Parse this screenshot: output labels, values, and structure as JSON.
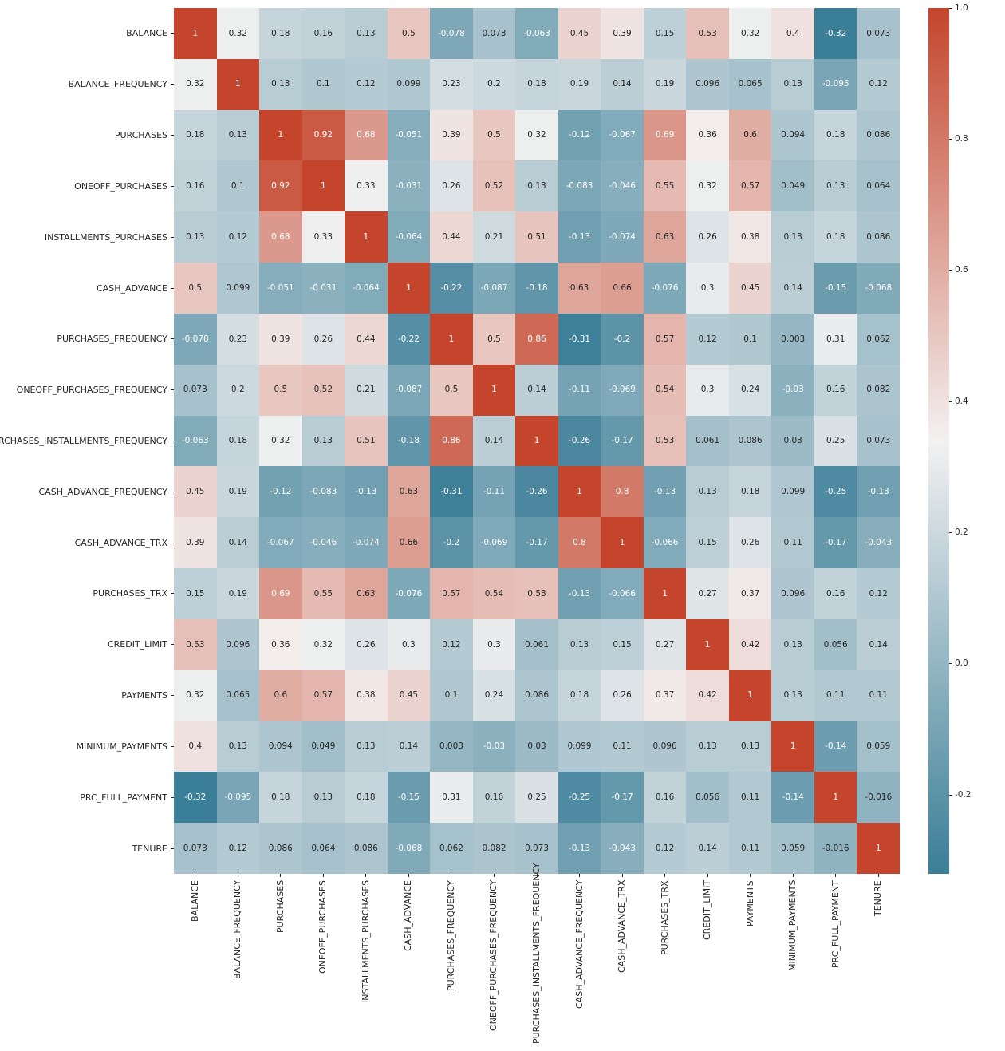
{
  "chart_data": {
    "type": "heatmap",
    "title": "",
    "labels": [
      "BALANCE",
      "BALANCE_FREQUENCY",
      "PURCHASES",
      "ONEOFF_PURCHASES",
      "INSTALLMENTS_PURCHASES",
      "CASH_ADVANCE",
      "PURCHASES_FREQUENCY",
      "ONEOFF_PURCHASES_FREQUENCY",
      "PURCHASES_INSTALLMENTS_FREQUENCY",
      "CASH_ADVANCE_FREQUENCY",
      "CASH_ADVANCE_TRX",
      "PURCHASES_TRX",
      "CREDIT_LIMIT",
      "PAYMENTS",
      "MINIMUM_PAYMENTS",
      "PRC_FULL_PAYMENT",
      "TENURE"
    ],
    "matrix": [
      [
        "1",
        "0.32",
        "0.18",
        "0.16",
        "0.13",
        "0.5",
        "-0.078",
        "0.073",
        "-0.063",
        "0.45",
        "0.39",
        "0.15",
        "0.53",
        "0.32",
        "0.4",
        "-0.32",
        "0.073"
      ],
      [
        "0.32",
        "1",
        "0.13",
        "0.1",
        "0.12",
        "0.099",
        "0.23",
        "0.2",
        "0.18",
        "0.19",
        "0.14",
        "0.19",
        "0.096",
        "0.065",
        "0.13",
        "-0.095",
        "0.12"
      ],
      [
        "0.18",
        "0.13",
        "1",
        "0.92",
        "0.68",
        "-0.051",
        "0.39",
        "0.5",
        "0.32",
        "-0.12",
        "-0.067",
        "0.69",
        "0.36",
        "0.6",
        "0.094",
        "0.18",
        "0.086"
      ],
      [
        "0.16",
        "0.1",
        "0.92",
        "1",
        "0.33",
        "-0.031",
        "0.26",
        "0.52",
        "0.13",
        "-0.083",
        "-0.046",
        "0.55",
        "0.32",
        "0.57",
        "0.049",
        "0.13",
        "0.064"
      ],
      [
        "0.13",
        "0.12",
        "0.68",
        "0.33",
        "1",
        "-0.064",
        "0.44",
        "0.21",
        "0.51",
        "-0.13",
        "-0.074",
        "0.63",
        "0.26",
        "0.38",
        "0.13",
        "0.18",
        "0.086"
      ],
      [
        "0.5",
        "0.099",
        "-0.051",
        "-0.031",
        "-0.064",
        "1",
        "-0.22",
        "-0.087",
        "-0.18",
        "0.63",
        "0.66",
        "-0.076",
        "0.3",
        "0.45",
        "0.14",
        "-0.15",
        "-0.068"
      ],
      [
        "-0.078",
        "0.23",
        "0.39",
        "0.26",
        "0.44",
        "-0.22",
        "1",
        "0.5",
        "0.86",
        "-0.31",
        "-0.2",
        "0.57",
        "0.12",
        "0.1",
        "0.003",
        "0.31",
        "0.062"
      ],
      [
        "0.073",
        "0.2",
        "0.5",
        "0.52",
        "0.21",
        "-0.087",
        "0.5",
        "1",
        "0.14",
        "-0.11",
        "-0.069",
        "0.54",
        "0.3",
        "0.24",
        "-0.03",
        "0.16",
        "0.082"
      ],
      [
        "-0.063",
        "0.18",
        "0.32",
        "0.13",
        "0.51",
        "-0.18",
        "0.86",
        "0.14",
        "1",
        "-0.26",
        "-0.17",
        "0.53",
        "0.061",
        "0.086",
        "0.03",
        "0.25",
        "0.073"
      ],
      [
        "0.45",
        "0.19",
        "-0.12",
        "-0.083",
        "-0.13",
        "0.63",
        "-0.31",
        "-0.11",
        "-0.26",
        "1",
        "0.8",
        "-0.13",
        "0.13",
        "0.18",
        "0.099",
        "-0.25",
        "-0.13"
      ],
      [
        "0.39",
        "0.14",
        "-0.067",
        "-0.046",
        "-0.074",
        "0.66",
        "-0.2",
        "-0.069",
        "-0.17",
        "0.8",
        "1",
        "-0.066",
        "0.15",
        "0.26",
        "0.11",
        "-0.17",
        "-0.043"
      ],
      [
        "0.15",
        "0.19",
        "0.69",
        "0.55",
        "0.63",
        "-0.076",
        "0.57",
        "0.54",
        "0.53",
        "-0.13",
        "-0.066",
        "1",
        "0.27",
        "0.37",
        "0.096",
        "0.16",
        "0.12"
      ],
      [
        "0.53",
        "0.096",
        "0.36",
        "0.32",
        "0.26",
        "0.3",
        "0.12",
        "0.3",
        "0.061",
        "0.13",
        "0.15",
        "0.27",
        "1",
        "0.42",
        "0.13",
        "0.056",
        "0.14"
      ],
      [
        "0.32",
        "0.065",
        "0.6",
        "0.57",
        "0.38",
        "0.45",
        "0.1",
        "0.24",
        "0.086",
        "0.18",
        "0.26",
        "0.37",
        "0.42",
        "1",
        "0.13",
        "0.11",
        "0.11"
      ],
      [
        "0.4",
        "0.13",
        "0.094",
        "0.049",
        "0.13",
        "0.14",
        "0.003",
        "-0.03",
        "0.03",
        "0.099",
        "0.11",
        "0.096",
        "0.13",
        "0.13",
        "1",
        "-0.14",
        "0.059"
      ],
      [
        "-0.32",
        "-0.095",
        "0.18",
        "0.13",
        "0.18",
        "-0.15",
        "0.31",
        "0.16",
        "0.25",
        "-0.25",
        "-0.17",
        "0.16",
        "0.056",
        "0.11",
        "-0.14",
        "1",
        "-0.016"
      ],
      [
        "0.073",
        "0.12",
        "0.086",
        "0.064",
        "0.086",
        "-0.068",
        "0.062",
        "0.082",
        "0.073",
        "-0.13",
        "-0.043",
        "0.12",
        "0.14",
        "0.11",
        "0.059",
        "-0.016",
        "1"
      ]
    ],
    "vmin": -0.32,
    "vmax": 1.0,
    "colorbar": {
      "tick_values": [
        1.0,
        0.8,
        0.6,
        0.4,
        0.2,
        0.0,
        -0.2
      ],
      "tick_labels": [
        "1.0",
        "0.8",
        "0.6",
        "0.4",
        "0.2",
        "0.0",
        "-0.2"
      ]
    },
    "colors": {
      "negative_end": "#3a7e97",
      "midpoint": "#f3f1f1",
      "positive_end": "#c4452c",
      "annotation_dark": "#262626",
      "annotation_light": "#ffffff",
      "tick_label": "#262626",
      "background": "#ffffff"
    },
    "layout_hints": {
      "legend_position": "right-colorbar",
      "grid": false,
      "x_tick_rotation": 90
    }
  }
}
